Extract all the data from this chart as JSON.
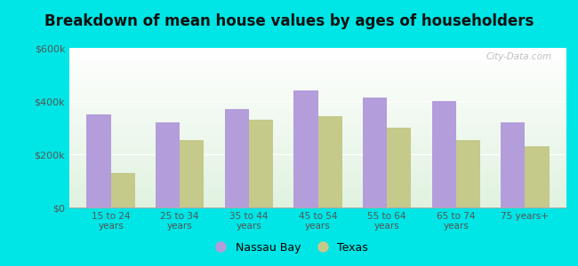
{
  "title": "Breakdown of mean house values by ages of householders",
  "categories": [
    "15 to 24\nyears",
    "25 to 34\nyears",
    "35 to 44\nyears",
    "45 to 54\nyears",
    "55 to 64\nyears",
    "65 to 74\nyears",
    "75 years+"
  ],
  "nassau_bay": [
    350000,
    320000,
    370000,
    440000,
    415000,
    400000,
    320000
  ],
  "texas": [
    130000,
    255000,
    330000,
    345000,
    300000,
    255000,
    230000
  ],
  "nassau_bay_color": "#b39ddb",
  "texas_color": "#c5c98a",
  "outer_bg": "#00e5e5",
  "ylim": [
    0,
    600000
  ],
  "yticks": [
    0,
    200000,
    400000,
    600000
  ],
  "ytick_labels": [
    "$0",
    "$200k",
    "$400k",
    "$600k"
  ],
  "title_fontsize": 12,
  "legend_nassau": "Nassau Bay",
  "legend_texas": "Texas",
  "watermark": "City-Data.com"
}
